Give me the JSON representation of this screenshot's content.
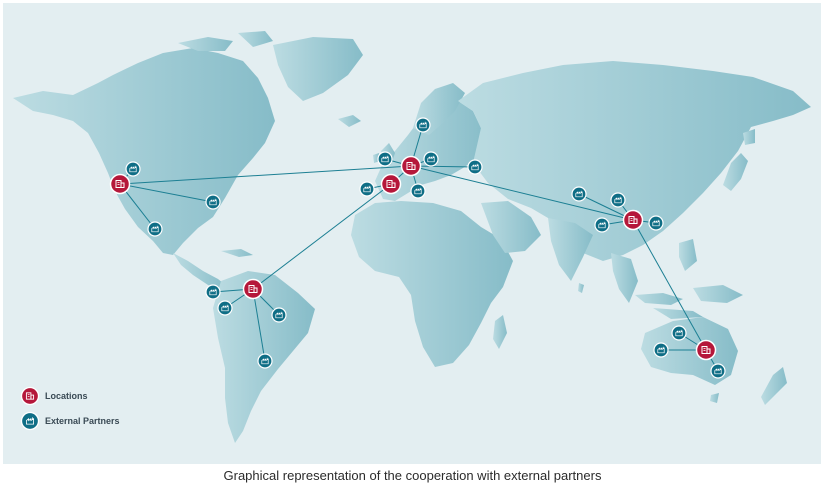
{
  "map": {
    "legend": {
      "locations_label": "Locations",
      "partners_label": "External Partners"
    },
    "colors": {
      "ocean": "#e3eef1",
      "land": "#9cc9d2",
      "location_marker": "#b5173a",
      "partner_marker": "#0f6e86",
      "connection_line": "#1c7f93"
    },
    "icons": {
      "location": "building-icon",
      "partner": "factory-icon"
    }
  },
  "caption": "Graphical representation of the cooperation with external partners"
}
